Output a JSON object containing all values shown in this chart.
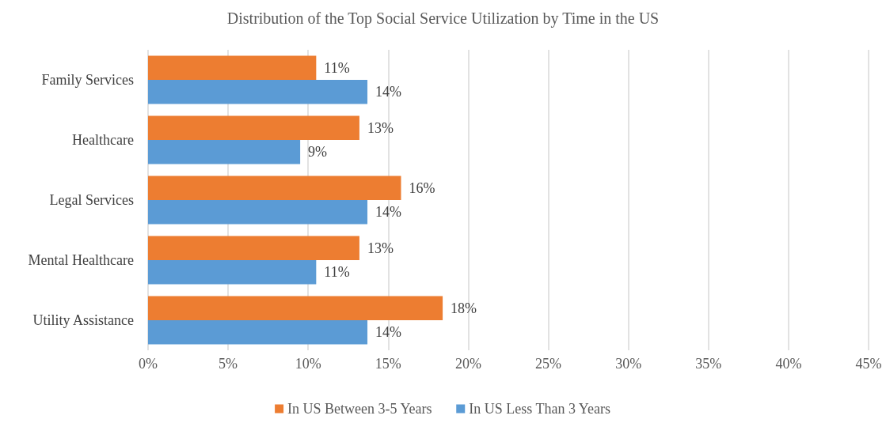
{
  "chart_data": {
    "type": "bar",
    "orientation": "horizontal",
    "title": "Distribution of the Top Social Service Utilization by Time in the US",
    "categories": [
      "Family Services",
      "Healthcare",
      "Legal Services",
      "Mental Healthcare",
      "Utility Assistance"
    ],
    "series": [
      {
        "name": "In US Between 3-5 Years",
        "color": "#ed7d31",
        "values": [
          10.5,
          13.2,
          15.8,
          13.2,
          18.4
        ],
        "value_labels": [
          "11%",
          "13%",
          "16%",
          "13%",
          "18%"
        ]
      },
      {
        "name": "In US Less Than 3 Years",
        "color": "#5b9bd5",
        "values": [
          13.7,
          9.5,
          13.7,
          10.5,
          13.7
        ],
        "value_labels": [
          "14%",
          "9%",
          "14%",
          "11%",
          "14%"
        ]
      }
    ],
    "xlim": [
      0,
      45
    ],
    "xticks": [
      {
        "value": 0,
        "label": "0%"
      },
      {
        "value": 5,
        "label": "5%"
      },
      {
        "value": 10,
        "label": "10%"
      },
      {
        "value": 15,
        "label": "15%"
      },
      {
        "value": 20,
        "label": "20%"
      },
      {
        "value": 25,
        "label": "25%"
      },
      {
        "value": 30,
        "label": "30%"
      },
      {
        "value": 35,
        "label": "35%"
      },
      {
        "value": 40,
        "label": "40%"
      },
      {
        "value": 45,
        "label": "45%"
      }
    ],
    "grid": "x",
    "legend": "bottom"
  }
}
